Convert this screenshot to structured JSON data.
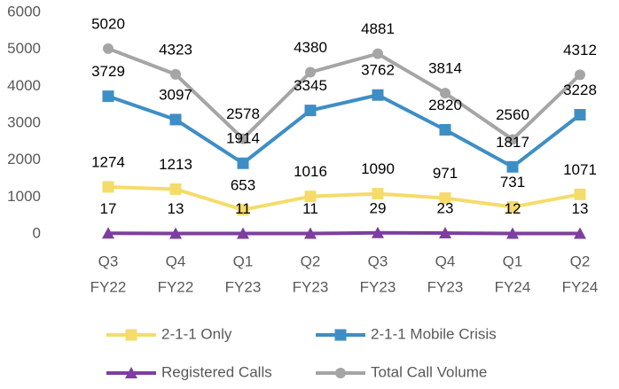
{
  "chart_data": {
    "type": "line",
    "categories": [
      [
        "Q3",
        "FY22"
      ],
      [
        "Q4",
        "FY22"
      ],
      [
        "Q1",
        "FY23"
      ],
      [
        "Q2",
        "FY23"
      ],
      [
        "Q3",
        "FY23"
      ],
      [
        "Q4",
        "FY23"
      ],
      [
        "Q1",
        "FY24"
      ],
      [
        "Q2",
        "FY24"
      ]
    ],
    "series": [
      {
        "name": "2-1-1 Only",
        "color": "#f5dc6a",
        "marker": "square",
        "values": [
          1274,
          1213,
          653,
          1016,
          1090,
          971,
          731,
          1071
        ]
      },
      {
        "name": "2-1-1 Mobile Crisis",
        "color": "#3e8ec6",
        "marker": "square",
        "values": [
          3729,
          3097,
          1914,
          3345,
          3762,
          2820,
          1817,
          3228
        ]
      },
      {
        "name": "Registered Calls",
        "color": "#7d3e9f",
        "marker": "triangle",
        "values": [
          17,
          13,
          11,
          11,
          29,
          23,
          12,
          13
        ]
      },
      {
        "name": "Total Call Volume",
        "color": "#a5a5a5",
        "marker": "circle",
        "values": [
          5020,
          4323,
          2578,
          4380,
          4881,
          3814,
          2560,
          4312
        ]
      }
    ],
    "ylim": [
      0,
      6000
    ],
    "yticks": [
      0,
      1000,
      2000,
      3000,
      4000,
      5000,
      6000
    ],
    "grid": false,
    "legend": "bottom"
  }
}
